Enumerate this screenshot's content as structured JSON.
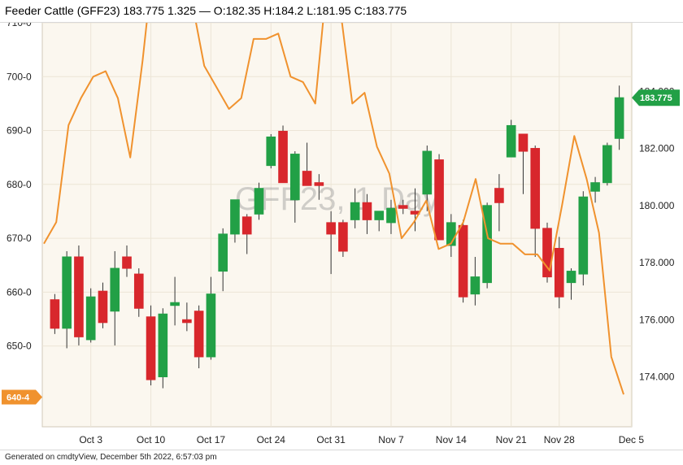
{
  "header": {
    "title": "Feeder Cattle (GFF23) 183.775 1.325 — O:182.35 H:184.2 L:181.95 C:183.775"
  },
  "footer": {
    "text": "Generated on cmdtyView, December 5th 2022, 6:57:03 pm"
  },
  "colors": {
    "up": "#22a046",
    "down": "#d8272c",
    "line": "#f0922e",
    "background": "#fbf7ef",
    "grid": "#ece5d6"
  },
  "chart_data": {
    "type": "candlestick",
    "watermark": "GFF23, 1 Day",
    "left_axis": {
      "ylim": [
        635,
        710
      ],
      "ticks": [
        "710-0",
        "700-0",
        "690-0",
        "680-0",
        "670-0",
        "660-0",
        "650-0"
      ],
      "tick_values": [
        710,
        700,
        690,
        680,
        670,
        660,
        650
      ],
      "marker": {
        "label": "640-4",
        "value": 640.5
      }
    },
    "right_axis": {
      "ylim": [
        172.25,
        186.4
      ],
      "ticks": [
        "184.000",
        "182.000",
        "180.000",
        "178.000",
        "176.000",
        "174.000"
      ],
      "tick_values": [
        184,
        182,
        180,
        178,
        176,
        174
      ],
      "marker": {
        "label": "183.775",
        "value": 183.775
      }
    },
    "x_labels": [
      "Oct 3",
      "Oct 10",
      "Oct 17",
      "Oct 24",
      "Oct 31",
      "Nov 7",
      "Nov 14",
      "Nov 21",
      "Nov 28",
      "Dec 5"
    ],
    "x_label_index": [
      3,
      8,
      13,
      18,
      23,
      28,
      33,
      38,
      42,
      48
    ],
    "candles": [
      {
        "o": 176.7,
        "h": 176.9,
        "l": 175.5,
        "c": 175.7
      },
      {
        "o": 175.7,
        "h": 178.4,
        "l": 175.0,
        "c": 178.2
      },
      {
        "o": 178.2,
        "h": 178.6,
        "l": 175.1,
        "c": 175.4
      },
      {
        "o": 175.3,
        "h": 177.1,
        "l": 175.2,
        "c": 176.8
      },
      {
        "o": 177.0,
        "h": 177.3,
        "l": 175.7,
        "c": 175.9
      },
      {
        "o": 176.3,
        "h": 178.4,
        "l": 175.1,
        "c": 177.8
      },
      {
        "o": 178.2,
        "h": 178.6,
        "l": 177.5,
        "c": 177.8
      },
      {
        "o": 177.6,
        "h": 177.8,
        "l": 176.1,
        "c": 176.4
      },
      {
        "o": 176.1,
        "h": 176.5,
        "l": 173.7,
        "c": 173.9
      },
      {
        "o": 174.0,
        "h": 176.4,
        "l": 173.6,
        "c": 176.2
      },
      {
        "o": 176.5,
        "h": 177.5,
        "l": 175.8,
        "c": 176.6
      },
      {
        "o": 176.0,
        "h": 176.6,
        "l": 175.6,
        "c": 175.9
      },
      {
        "o": 176.3,
        "h": 176.5,
        "l": 174.3,
        "c": 174.7
      },
      {
        "o": 174.7,
        "h": 177.5,
        "l": 174.6,
        "c": 176.9
      },
      {
        "o": 177.7,
        "h": 179.2,
        "l": 177.0,
        "c": 179.0
      },
      {
        "o": 179.0,
        "h": 180.0,
        "l": 178.7,
        "c": 180.2
      },
      {
        "o": 179.6,
        "h": 179.7,
        "l": 178.3,
        "c": 179.0
      },
      {
        "o": 179.7,
        "h": 180.8,
        "l": 179.5,
        "c": 180.6
      },
      {
        "o": 181.4,
        "h": 182.5,
        "l": 181.3,
        "c": 182.4
      },
      {
        "o": 182.6,
        "h": 182.8,
        "l": 180.8,
        "c": 180.8
      },
      {
        "o": 180.2,
        "h": 181.9,
        "l": 179.4,
        "c": 181.8
      },
      {
        "o": 181.2,
        "h": 182.2,
        "l": 180.8,
        "c": 180.7
      },
      {
        "o": 180.8,
        "h": 181.1,
        "l": 180.2,
        "c": 180.7
      },
      {
        "o": 179.4,
        "h": 179.8,
        "l": 177.6,
        "c": 179.0
      },
      {
        "o": 179.4,
        "h": 179.5,
        "l": 178.2,
        "c": 178.4
      },
      {
        "o": 179.5,
        "h": 180.6,
        "l": 179.2,
        "c": 180.1
      },
      {
        "o": 180.1,
        "h": 180.4,
        "l": 179.0,
        "c": 179.5
      },
      {
        "o": 179.5,
        "h": 179.8,
        "l": 179.1,
        "c": 179.8
      },
      {
        "o": 179.4,
        "h": 180.2,
        "l": 179.0,
        "c": 179.9
      },
      {
        "o": 180.0,
        "h": 180.2,
        "l": 179.7,
        "c": 179.9
      },
      {
        "o": 179.8,
        "h": 180.6,
        "l": 179.1,
        "c": 179.7
      },
      {
        "o": 180.4,
        "h": 182.1,
        "l": 179.8,
        "c": 181.9
      },
      {
        "o": 181.6,
        "h": 181.8,
        "l": 178.8,
        "c": 178.8
      },
      {
        "o": 178.6,
        "h": 179.7,
        "l": 178.2,
        "c": 179.4
      },
      {
        "o": 179.3,
        "h": 179.5,
        "l": 176.6,
        "c": 176.8
      },
      {
        "o": 176.9,
        "h": 178.2,
        "l": 176.5,
        "c": 177.5
      },
      {
        "o": 177.3,
        "h": 180.1,
        "l": 177.1,
        "c": 180.0
      },
      {
        "o": 180.6,
        "h": 181.1,
        "l": 179.1,
        "c": 180.1
      },
      {
        "o": 181.7,
        "h": 183.0,
        "l": 181.8,
        "c": 182.8
      },
      {
        "o": 182.5,
        "h": 182.5,
        "l": 180.4,
        "c": 181.9
      },
      {
        "o": 182.0,
        "h": 182.1,
        "l": 178.2,
        "c": 179.2
      },
      {
        "o": 179.2,
        "h": 179.4,
        "l": 177.3,
        "c": 177.5
      },
      {
        "o": 178.5,
        "h": 178.9,
        "l": 176.4,
        "c": 176.8
      },
      {
        "o": 177.3,
        "h": 177.8,
        "l": 176.7,
        "c": 177.7
      },
      {
        "o": 177.6,
        "h": 180.5,
        "l": 177.2,
        "c": 180.3
      },
      {
        "o": 180.5,
        "h": 181.0,
        "l": 180.1,
        "c": 180.8
      },
      {
        "o": 180.8,
        "h": 182.2,
        "l": 180.7,
        "c": 182.1
      },
      {
        "o": 182.35,
        "h": 184.2,
        "l": 181.95,
        "c": 183.775
      }
    ],
    "line_series": [
      669,
      673,
      691,
      696,
      700,
      701,
      696,
      685,
      703,
      724,
      723,
      724,
      714,
      702,
      698,
      694,
      696,
      707,
      707,
      708,
      700,
      699,
      695,
      719,
      713,
      695,
      697,
      687,
      682,
      670,
      673,
      677,
      668,
      669,
      673,
      681,
      670,
      669,
      669,
      667,
      667,
      664,
      676,
      689,
      681,
      671,
      648,
      641
    ]
  }
}
